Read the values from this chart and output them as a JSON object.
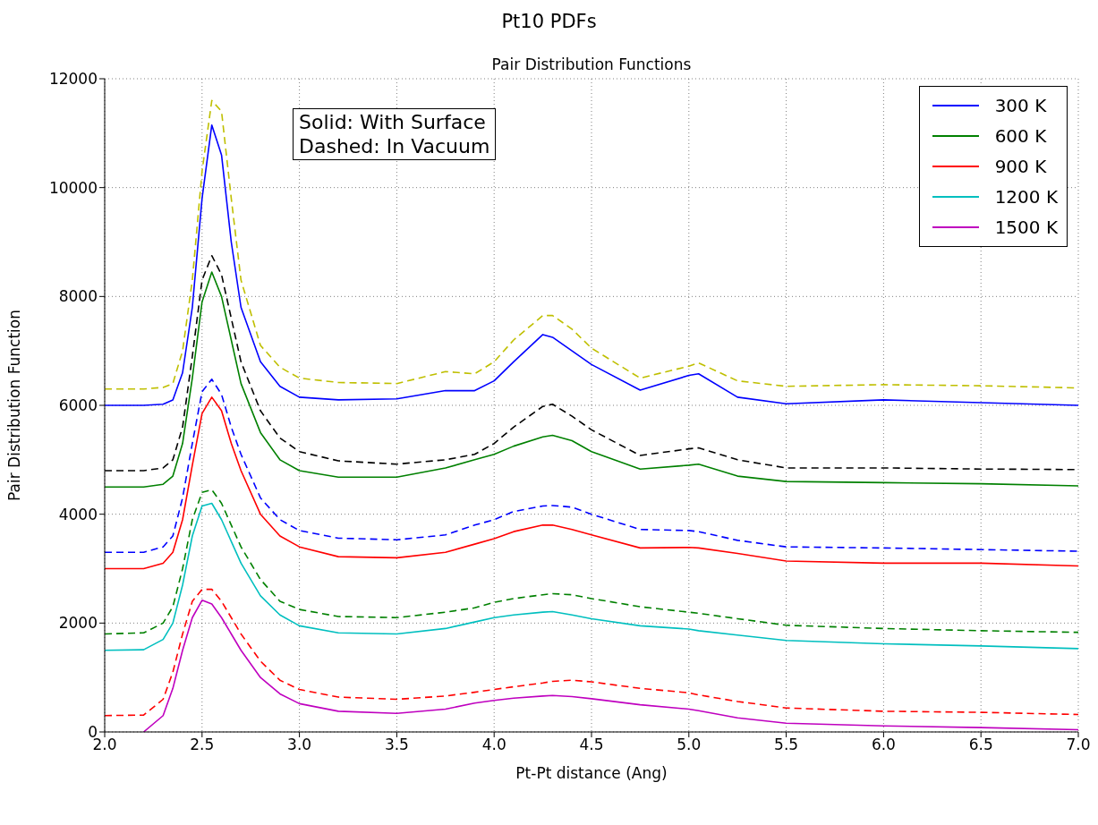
{
  "chart_data": {
    "type": "line",
    "title": "Pt10 PDFs",
    "subtitle": "Pair Distribution Functions",
    "xlabel": "Pt-Pt distance (Ang)",
    "ylabel": "Pair Distribution Function",
    "annotations": [
      "Solid: With Surface\nDashed: In Vacuum"
    ],
    "xlim": [
      2.0,
      7.0
    ],
    "xticks": [
      {
        "value": 2,
        "label": "2.0"
      },
      {
        "value": 2.5,
        "label": "2.5"
      },
      {
        "value": 3,
        "label": "3.0"
      },
      {
        "value": 3.5,
        "label": "3.5"
      },
      {
        "value": 4,
        "label": "4.0"
      },
      {
        "value": 4.5,
        "label": "4.5"
      },
      {
        "value": 5,
        "label": "5.0"
      },
      {
        "value": 5.5,
        "label": "5.5"
      },
      {
        "value": 6,
        "label": "6.0"
      },
      {
        "value": 6.5,
        "label": "6.5"
      },
      {
        "value": 7,
        "label": "7.0"
      }
    ],
    "ylim": [
      0,
      12000
    ],
    "yticks": [
      0,
      2000,
      4000,
      6000,
      8000,
      10000,
      12000
    ],
    "grid": true,
    "legend": "top right",
    "marker": "none",
    "x": [
      2.0,
      2.2,
      2.3,
      2.35,
      2.4,
      2.45,
      2.5,
      2.55,
      2.6,
      2.65,
      2.7,
      2.8,
      2.9,
      3.0,
      3.2,
      3.5,
      3.75,
      3.9,
      4.0,
      4.1,
      4.25,
      4.3,
      4.4,
      4.5,
      4.75,
      5.0,
      5.05,
      5.25,
      5.5,
      6.0,
      6.5,
      7.0
    ],
    "series": [
      {
        "name": "300 K",
        "color": "#0000ff",
        "line_style": "solid",
        "values": [
          6000,
          6000,
          6020,
          6100,
          6600,
          7800,
          9800,
          11150,
          10600,
          9000,
          7800,
          6800,
          6350,
          6150,
          6100,
          6120,
          6270,
          6270,
          6450,
          6800,
          7300,
          7250,
          7000,
          6750,
          6280,
          6550,
          6580,
          6150,
          6030,
          6100,
          6050,
          6000
        ]
      },
      {
        "name": "600 K",
        "color": "#008000",
        "line_style": "solid",
        "values": [
          4500,
          4500,
          4550,
          4700,
          5300,
          6500,
          7900,
          8450,
          8000,
          7200,
          6400,
          5500,
          5000,
          4800,
          4680,
          4680,
          4850,
          5000,
          5100,
          5250,
          5420,
          5450,
          5350,
          5150,
          4830,
          4900,
          4920,
          4700,
          4600,
          4580,
          4560,
          4520
        ]
      },
      {
        "name": "900 K",
        "color": "#ff0000",
        "line_style": "solid",
        "values": [
          3000,
          3000,
          3100,
          3300,
          3900,
          4900,
          5850,
          6150,
          5900,
          5300,
          4800,
          4000,
          3600,
          3400,
          3220,
          3200,
          3300,
          3450,
          3550,
          3680,
          3800,
          3800,
          3720,
          3620,
          3380,
          3390,
          3380,
          3280,
          3140,
          3100,
          3100,
          3050
        ]
      },
      {
        "name": "1200 K",
        "color": "#00bfbf",
        "line_style": "solid",
        "values": [
          1500,
          1510,
          1700,
          2000,
          2700,
          3600,
          4150,
          4200,
          3900,
          3500,
          3100,
          2500,
          2150,
          1950,
          1820,
          1800,
          1900,
          2020,
          2100,
          2150,
          2200,
          2210,
          2150,
          2080,
          1950,
          1890,
          1860,
          1780,
          1680,
          1620,
          1580,
          1530
        ]
      },
      {
        "name": "1500 K",
        "color": "#bf00bf",
        "line_style": "solid",
        "values": [
          null,
          0,
          300,
          800,
          1500,
          2100,
          2420,
          2350,
          2100,
          1800,
          1500,
          1000,
          700,
          520,
          380,
          340,
          420,
          530,
          580,
          620,
          660,
          670,
          650,
          610,
          500,
          420,
          390,
          260,
          160,
          110,
          80,
          40
        ]
      },
      {
        "color": "#bfbf00",
        "line_style": "dashed",
        "values": [
          6300,
          6300,
          6330,
          6400,
          7000,
          8300,
          10300,
          11600,
          11400,
          9800,
          8300,
          7100,
          6700,
          6500,
          6420,
          6400,
          6620,
          6580,
          6800,
          7200,
          7650,
          7650,
          7400,
          7050,
          6500,
          6720,
          6780,
          6450,
          6350,
          6380,
          6360,
          6320
        ]
      },
      {
        "color": "#000000",
        "line_style": "dashed",
        "values": [
          4800,
          4800,
          4850,
          5000,
          5600,
          6900,
          8300,
          8750,
          8400,
          7600,
          6800,
          5900,
          5400,
          5150,
          4980,
          4920,
          5000,
          5100,
          5300,
          5600,
          5980,
          6020,
          5800,
          5550,
          5080,
          5200,
          5220,
          5000,
          4850,
          4850,
          4830,
          4820
        ]
      },
      {
        "color": "#0000ff",
        "line_style": "dashed",
        "values": [
          3300,
          3300,
          3400,
          3600,
          4300,
          5300,
          6250,
          6480,
          6200,
          5600,
          5100,
          4300,
          3900,
          3700,
          3560,
          3530,
          3620,
          3800,
          3900,
          4050,
          4150,
          4160,
          4130,
          4000,
          3720,
          3700,
          3680,
          3520,
          3400,
          3380,
          3350,
          3320
        ]
      },
      {
        "color": "#008000",
        "line_style": "dashed",
        "values": [
          1800,
          1820,
          2000,
          2300,
          3000,
          3900,
          4400,
          4450,
          4200,
          3800,
          3400,
          2800,
          2400,
          2250,
          2120,
          2100,
          2200,
          2280,
          2380,
          2450,
          2520,
          2540,
          2520,
          2450,
          2300,
          2200,
          2180,
          2080,
          1960,
          1900,
          1860,
          1830
        ]
      },
      {
        "color": "#ff0000",
        "line_style": "dashed",
        "values": [
          300,
          310,
          600,
          1100,
          1800,
          2400,
          2620,
          2620,
          2400,
          2100,
          1800,
          1300,
          950,
          780,
          640,
          600,
          660,
          730,
          780,
          830,
          900,
          930,
          950,
          920,
          800,
          720,
          680,
          560,
          440,
          380,
          360,
          320
        ]
      }
    ]
  }
}
